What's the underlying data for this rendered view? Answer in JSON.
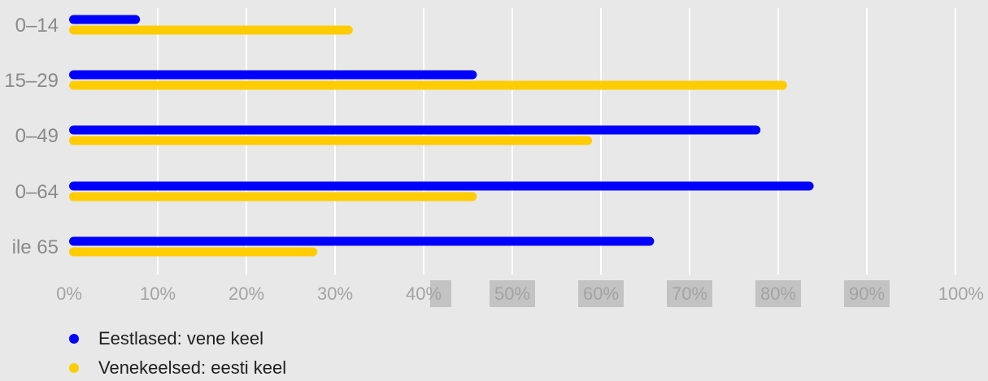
{
  "chart_data": {
    "type": "bar",
    "orientation": "horizontal",
    "categories": [
      "0–14",
      "15–29",
      "30–49",
      "50–64",
      "üle 65"
    ],
    "displayed_category_labels": [
      "0–14",
      "15–29",
      "0–49",
      "0–64",
      "ile 65"
    ],
    "series": [
      {
        "name": "Eestlased: vene keel",
        "color": "#0000ff",
        "values": [
          8,
          46,
          78,
          84,
          66
        ]
      },
      {
        "name": "Venekeelsed: eesti keel",
        "color": "#ffcc00",
        "values": [
          32,
          81,
          59,
          46,
          28
        ]
      }
    ],
    "x_ticks": [
      "0%",
      "10%",
      "20%",
      "30%",
      "40%",
      "50%",
      "60%",
      "70%",
      "80%",
      "90%",
      "100%"
    ],
    "xlim": [
      0,
      100
    ],
    "x_unit": "%",
    "grid": "vertical",
    "legend_position": "bottom-left"
  }
}
